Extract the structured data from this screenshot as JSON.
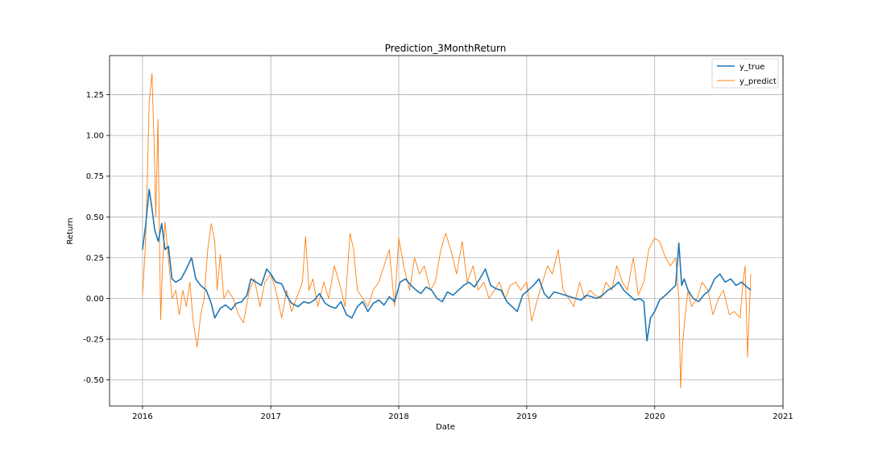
{
  "chart_data": {
    "type": "line",
    "title": "Prediction_3MonthReturn",
    "xlabel": "Date",
    "ylabel": "Return",
    "x_ticks": [
      "2016",
      "2017",
      "2018",
      "2019",
      "2020",
      "2021"
    ],
    "y_ticks": [
      "-0.50",
      "-0.25",
      "0.00",
      "0.25",
      "0.50",
      "0.75",
      "1.00",
      "1.25"
    ],
    "xlim": [
      "2015-09-29",
      "2021-01-01"
    ],
    "ylim": [
      -0.66,
      1.49
    ],
    "grid": true,
    "legend_position": "top-right",
    "colors": {
      "y_true": "#1f77b4",
      "y_predict": "#ff7f0e"
    },
    "series": [
      {
        "name": "y_true",
        "x": [
          "2016-01-01",
          "2016-01-10",
          "2016-01-20",
          "2016-01-28",
          "2016-02-05",
          "2016-02-15",
          "2016-02-25",
          "2016-03-05",
          "2016-03-15",
          "2016-03-25",
          "2016-04-05",
          "2016-04-20",
          "2016-05-05",
          "2016-05-20",
          "2016-06-01",
          "2016-06-15",
          "2016-07-01",
          "2016-07-15",
          "2016-07-25",
          "2016-08-10",
          "2016-08-25",
          "2016-09-10",
          "2016-09-25",
          "2016-10-10",
          "2016-10-25",
          "2016-11-05",
          "2016-11-20",
          "2016-12-05",
          "2016-12-20",
          "2017-01-01",
          "2017-01-15",
          "2017-02-01",
          "2017-02-15",
          "2017-03-01",
          "2017-03-20",
          "2017-04-05",
          "2017-04-20",
          "2017-05-05",
          "2017-05-20",
          "2017-06-05",
          "2017-06-20",
          "2017-07-05",
          "2017-07-20",
          "2017-08-05",
          "2017-08-20",
          "2017-09-05",
          "2017-09-20",
          "2017-10-05",
          "2017-10-20",
          "2017-11-05",
          "2017-11-20",
          "2017-12-05",
          "2017-12-20",
          "2018-01-05",
          "2018-01-20",
          "2018-02-05",
          "2018-02-20",
          "2018-03-05",
          "2018-03-20",
          "2018-04-05",
          "2018-04-20",
          "2018-05-05",
          "2018-05-20",
          "2018-06-05",
          "2018-06-20",
          "2018-07-05",
          "2018-07-20",
          "2018-08-05",
          "2018-08-20",
          "2018-09-05",
          "2018-09-20",
          "2018-10-05",
          "2018-10-20",
          "2018-11-05",
          "2018-11-20",
          "2018-12-05",
          "2018-12-20",
          "2019-01-05",
          "2019-01-20",
          "2019-02-05",
          "2019-02-20",
          "2019-03-05",
          "2019-03-20",
          "2019-04-05",
          "2019-04-20",
          "2019-05-05",
          "2019-05-20",
          "2019-06-05",
          "2019-06-20",
          "2019-07-05",
          "2019-07-20",
          "2019-08-05",
          "2019-08-20",
          "2019-09-05",
          "2019-09-20",
          "2019-10-05",
          "2019-10-20",
          "2019-11-05",
          "2019-11-20",
          "2019-12-01",
          "2019-12-10",
          "2019-12-20",
          "2020-01-01",
          "2020-01-15",
          "2020-02-01",
          "2020-02-15",
          "2020-03-01",
          "2020-03-10",
          "2020-03-18",
          "2020-03-25",
          "2020-04-05",
          "2020-04-20",
          "2020-05-05",
          "2020-05-20",
          "2020-06-05",
          "2020-06-20",
          "2020-07-05",
          "2020-07-20",
          "2020-08-05",
          "2020-08-20",
          "2020-09-05",
          "2020-09-20",
          "2020-10-01"
        ],
        "y": [
          0.3,
          0.45,
          0.67,
          0.55,
          0.42,
          0.35,
          0.46,
          0.3,
          0.32,
          0.12,
          0.1,
          0.12,
          0.18,
          0.25,
          0.12,
          0.08,
          0.05,
          -0.03,
          -0.12,
          -0.06,
          -0.04,
          -0.07,
          -0.03,
          -0.02,
          0.02,
          0.12,
          0.1,
          0.08,
          0.18,
          0.15,
          0.1,
          0.09,
          0.02,
          -0.03,
          -0.05,
          -0.02,
          -0.03,
          -0.01,
          0.03,
          -0.03,
          -0.05,
          -0.06,
          -0.02,
          -0.1,
          -0.12,
          -0.05,
          -0.02,
          -0.08,
          -0.03,
          -0.01,
          -0.04,
          0.01,
          -0.02,
          0.1,
          0.12,
          0.08,
          0.05,
          0.03,
          0.07,
          0.05,
          0.0,
          -0.02,
          0.04,
          0.02,
          0.05,
          0.08,
          0.1,
          0.07,
          0.12,
          0.18,
          0.08,
          0.06,
          0.05,
          -0.02,
          -0.05,
          -0.08,
          0.02,
          0.05,
          0.08,
          0.12,
          0.03,
          0.0,
          0.04,
          0.03,
          0.02,
          0.01,
          0.0,
          -0.01,
          0.02,
          0.01,
          0.0,
          0.02,
          0.05,
          0.07,
          0.1,
          0.05,
          0.02,
          -0.01,
          0.0,
          -0.02,
          -0.26,
          -0.12,
          -0.08,
          -0.01,
          0.02,
          0.05,
          0.08,
          0.34,
          0.08,
          0.12,
          0.05,
          0.0,
          -0.02,
          0.02,
          0.05,
          0.12,
          0.15,
          0.1,
          0.12,
          0.08,
          0.1,
          0.07,
          0.05
        ]
      },
      {
        "name": "y_predict",
        "x": [
          "2016-01-01",
          "2016-01-10",
          "2016-01-20",
          "2016-01-28",
          "2016-02-03",
          "2016-02-08",
          "2016-02-14",
          "2016-02-18",
          "2016-02-22",
          "2016-02-27",
          "2016-03-05",
          "2016-03-15",
          "2016-03-25",
          "2016-04-05",
          "2016-04-15",
          "2016-04-25",
          "2016-05-05",
          "2016-05-15",
          "2016-05-25",
          "2016-06-05",
          "2016-06-15",
          "2016-06-25",
          "2016-07-05",
          "2016-07-15",
          "2016-07-25",
          "2016-08-01",
          "2016-08-10",
          "2016-08-20",
          "2016-09-01",
          "2016-09-15",
          "2016-10-01",
          "2016-10-15",
          "2016-11-01",
          "2016-11-15",
          "2016-12-01",
          "2016-12-15",
          "2017-01-01",
          "2017-01-15",
          "2017-02-01",
          "2017-02-15",
          "2017-03-01",
          "2017-03-15",
          "2017-04-01",
          "2017-04-10",
          "2017-04-20",
          "2017-05-01",
          "2017-05-15",
          "2017-06-01",
          "2017-06-15",
          "2017-07-01",
          "2017-07-15",
          "2017-08-01",
          "2017-08-15",
          "2017-08-25",
          "2017-09-05",
          "2017-09-20",
          "2017-10-05",
          "2017-10-20",
          "2017-11-05",
          "2017-11-20",
          "2017-12-05",
          "2017-12-20",
          "2018-01-01",
          "2018-01-15",
          "2018-02-01",
          "2018-02-15",
          "2018-03-01",
          "2018-03-15",
          "2018-04-01",
          "2018-04-15",
          "2018-05-01",
          "2018-05-15",
          "2018-06-01",
          "2018-06-15",
          "2018-07-01",
          "2018-07-15",
          "2018-08-01",
          "2018-08-15",
          "2018-09-01",
          "2018-09-15",
          "2018-10-01",
          "2018-10-15",
          "2018-11-01",
          "2018-11-15",
          "2018-12-01",
          "2018-12-15",
          "2019-01-01",
          "2019-01-15",
          "2019-02-01",
          "2019-02-15",
          "2019-03-01",
          "2019-03-15",
          "2019-04-01",
          "2019-04-15",
          "2019-05-01",
          "2019-05-15",
          "2019-06-01",
          "2019-06-15",
          "2019-07-01",
          "2019-07-15",
          "2019-08-01",
          "2019-08-15",
          "2019-09-01",
          "2019-09-15",
          "2019-10-01",
          "2019-10-15",
          "2019-11-01",
          "2019-11-15",
          "2019-12-01",
          "2019-12-15",
          "2020-01-01",
          "2020-01-15",
          "2020-02-01",
          "2020-02-15",
          "2020-03-01",
          "2020-03-10",
          "2020-03-15",
          "2020-03-20",
          "2020-03-28",
          "2020-04-05",
          "2020-04-15",
          "2020-05-01",
          "2020-05-15",
          "2020-06-01",
          "2020-06-15",
          "2020-07-01",
          "2020-07-15",
          "2020-08-01",
          "2020-08-15",
          "2020-09-01",
          "2020-09-05",
          "2020-09-10",
          "2020-09-15",
          "2020-09-22",
          "2020-10-01"
        ],
        "y": [
          0.02,
          0.35,
          1.2,
          1.38,
          0.95,
          0.5,
          1.1,
          0.4,
          -0.13,
          0.2,
          0.47,
          0.25,
          0.0,
          0.05,
          -0.1,
          0.05,
          -0.05,
          0.1,
          -0.15,
          -0.3,
          -0.1,
          0.0,
          0.3,
          0.46,
          0.35,
          0.05,
          0.27,
          0.0,
          0.05,
          0.0,
          -0.1,
          -0.15,
          0.05,
          0.12,
          -0.05,
          0.1,
          0.15,
          0.05,
          -0.12,
          0.05,
          -0.08,
          0.0,
          0.1,
          0.38,
          0.05,
          0.12,
          -0.05,
          0.1,
          0.0,
          0.2,
          0.1,
          -0.05,
          0.4,
          0.3,
          0.05,
          0.0,
          -0.05,
          0.05,
          0.1,
          0.2,
          0.3,
          -0.05,
          0.37,
          0.2,
          0.05,
          0.25,
          0.15,
          0.2,
          0.05,
          0.1,
          0.3,
          0.4,
          0.28,
          0.15,
          0.35,
          0.1,
          0.2,
          0.05,
          0.1,
          0.0,
          0.05,
          0.1,
          0.0,
          0.08,
          0.1,
          0.05,
          0.1,
          -0.14,
          0.0,
          0.1,
          0.2,
          0.15,
          0.3,
          0.05,
          0.0,
          -0.05,
          0.1,
          0.0,
          0.05,
          0.02,
          0.0,
          0.1,
          0.05,
          0.2,
          0.1,
          0.05,
          0.25,
          0.02,
          0.1,
          0.3,
          0.37,
          0.35,
          0.25,
          0.2,
          0.25,
          0.0,
          -0.55,
          -0.3,
          -0.1,
          0.05,
          -0.05,
          0.0,
          0.1,
          0.05,
          -0.1,
          0.0,
          0.05,
          -0.1,
          -0.08,
          -0.12,
          0.0,
          0.12,
          0.2,
          -0.36,
          0.15
        ]
      }
    ]
  }
}
